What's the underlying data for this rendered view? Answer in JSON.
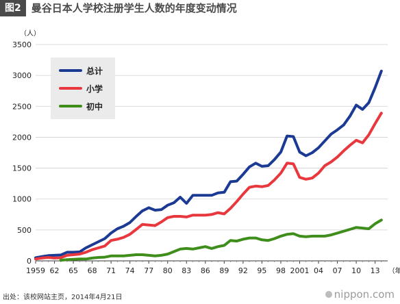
{
  "figure": {
    "tag": "图2",
    "title": "曼谷日本人学校注册学生人数的年度变动情况"
  },
  "source": "出处：该校网站主页，2014年4月21日",
  "brand": "nippon.com",
  "chart_data": {
    "type": "line",
    "title": "",
    "ylabel": "（人）",
    "xlabel": "（年）",
    "ylim": [
      0,
      3500
    ],
    "xlim": [
      1959,
      2015
    ],
    "yticks": [
      0,
      500,
      1000,
      1500,
      2000,
      2500,
      3000,
      3500
    ],
    "xticks": [
      {
        "year": 1959,
        "label": "1959"
      },
      {
        "year": 1962,
        "label": "62"
      },
      {
        "year": 1965,
        "label": "65"
      },
      {
        "year": 1968,
        "label": "68"
      },
      {
        "year": 1971,
        "label": "71"
      },
      {
        "year": 1974,
        "label": "74"
      },
      {
        "year": 1977,
        "label": "77"
      },
      {
        "year": 1980,
        "label": "80"
      },
      {
        "year": 1983,
        "label": "83"
      },
      {
        "year": 1986,
        "label": "86"
      },
      {
        "year": 1989,
        "label": "89"
      },
      {
        "year": 1992,
        "label": "92"
      },
      {
        "year": 1995,
        "label": "95"
      },
      {
        "year": 1998,
        "label": "98"
      },
      {
        "year": 2001,
        "label": "2001"
      },
      {
        "year": 2004,
        "label": "04"
      },
      {
        "year": 2007,
        "label": "07"
      },
      {
        "year": 2010,
        "label": "10"
      },
      {
        "year": 2013,
        "label": "13"
      }
    ],
    "grid": true,
    "legend_position": "top-left",
    "series": [
      {
        "name": "总计",
        "color": "#1b3a93",
        "x": [
          1959,
          1960,
          1961,
          1962,
          1963,
          1964,
          1965,
          1966,
          1967,
          1968,
          1969,
          1970,
          1971,
          1972,
          1973,
          1974,
          1975,
          1976,
          1977,
          1978,
          1979,
          1980,
          1981,
          1982,
          1983,
          1984,
          1985,
          1986,
          1987,
          1988,
          1989,
          1990,
          1991,
          1992,
          1993,
          1994,
          1995,
          1996,
          1997,
          1998,
          1999,
          2000,
          2001,
          2002,
          2003,
          2004,
          2005,
          2006,
          2007,
          2008,
          2009,
          2010,
          2011,
          2012,
          2013,
          2014
        ],
        "values": [
          50,
          70,
          85,
          90,
          95,
          140,
          140,
          145,
          210,
          260,
          310,
          360,
          450,
          520,
          560,
          620,
          720,
          810,
          860,
          820,
          830,
          900,
          940,
          1030,
          930,
          1060,
          1060,
          1060,
          1060,
          1100,
          1110,
          1280,
          1290,
          1400,
          1520,
          1580,
          1530,
          1540,
          1640,
          1760,
          2020,
          2010,
          1760,
          1700,
          1750,
          1830,
          1940,
          2050,
          2120,
          2200,
          2340,
          2520,
          2450,
          2560,
          2800,
          3070
        ]
      },
      {
        "name": "小学",
        "color": "#e8383d",
        "x": [
          1959,
          1960,
          1961,
          1962,
          1963,
          1964,
          1965,
          1966,
          1967,
          1968,
          1969,
          1970,
          1971,
          1972,
          1973,
          1974,
          1975,
          1976,
          1977,
          1978,
          1979,
          1980,
          1981,
          1982,
          1983,
          1984,
          1985,
          1986,
          1987,
          1988,
          1989,
          1990,
          1991,
          1992,
          1993,
          1994,
          1995,
          1996,
          1997,
          1998,
          1999,
          2000,
          2001,
          2002,
          2003,
          2004,
          2005,
          2006,
          2007,
          2008,
          2009,
          2010,
          2011,
          2012,
          2013,
          2014
        ],
        "values": [
          30,
          45,
          55,
          45,
          50,
          90,
          100,
          110,
          140,
          180,
          210,
          240,
          330,
          350,
          380,
          430,
          510,
          590,
          580,
          570,
          630,
          700,
          720,
          720,
          710,
          740,
          740,
          740,
          750,
          780,
          760,
          850,
          960,
          1080,
          1190,
          1210,
          1200,
          1220,
          1310,
          1420,
          1580,
          1570,
          1350,
          1320,
          1340,
          1420,
          1540,
          1600,
          1680,
          1780,
          1870,
          1950,
          1910,
          2040,
          2220,
          2390
        ]
      },
      {
        "name": "初中",
        "color": "#3f8e1c",
        "x": [
          1963,
          1964,
          1965,
          1966,
          1967,
          1968,
          1969,
          1970,
          1971,
          1972,
          1973,
          1974,
          1975,
          1976,
          1977,
          1978,
          1979,
          1980,
          1981,
          1982,
          1983,
          1984,
          1985,
          1986,
          1987,
          1988,
          1989,
          1990,
          1991,
          1992,
          1993,
          1994,
          1995,
          1996,
          1997,
          1998,
          1999,
          2000,
          2001,
          2002,
          2003,
          2004,
          2005,
          2006,
          2007,
          2008,
          2009,
          2010,
          2011,
          2012,
          2013,
          2014
        ],
        "values": [
          10,
          20,
          25,
          30,
          30,
          45,
          55,
          60,
          80,
          80,
          80,
          90,
          100,
          100,
          90,
          80,
          90,
          110,
          150,
          190,
          200,
          190,
          210,
          230,
          200,
          230,
          250,
          330,
          320,
          350,
          370,
          370,
          340,
          330,
          360,
          400,
          430,
          440,
          400,
          390,
          400,
          400,
          400,
          420,
          450,
          480,
          510,
          540,
          530,
          520,
          600,
          660
        ]
      }
    ]
  }
}
